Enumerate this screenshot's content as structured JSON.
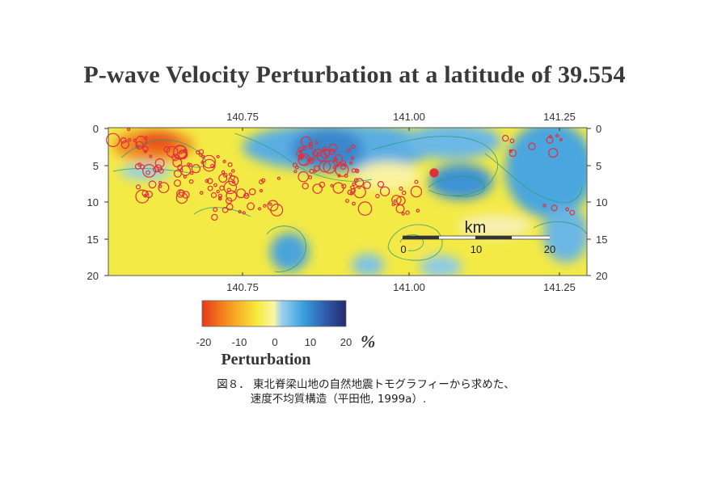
{
  "figure": {
    "title": "P-wave Velocity Perturbation at a latitude of 39.554",
    "longitude_ticks_top": [
      "140.75",
      "141.00",
      "141.25"
    ],
    "longitude_ticks_bottom": [
      "140.75",
      "141.00",
      "141.25"
    ],
    "depth_ticks_left": [
      "0",
      "5",
      "10",
      "15",
      "20"
    ],
    "depth_ticks_right": [
      "0",
      "5",
      "10",
      "15",
      "20"
    ],
    "scale_bar": {
      "unit": "km",
      "labels": [
        "0",
        "10",
        "20"
      ]
    },
    "colorbar": {
      "labels": [
        "-20",
        "-10",
        "0",
        "10",
        "20"
      ],
      "unit_symbol": "%",
      "title": "Perturbation",
      "colors": {
        "slow_strong": "#e8431c",
        "slow": "#f39a1e",
        "neutral": "#f6ef3c",
        "fast": "#4aa6de",
        "fast_strong": "#27307a"
      }
    }
  },
  "caption": {
    "line1": "図８．  東北脊梁山地の自然地震トモグラフィーから求めた、",
    "line2": "速度不均質構造（平田他, 1999a）."
  }
}
